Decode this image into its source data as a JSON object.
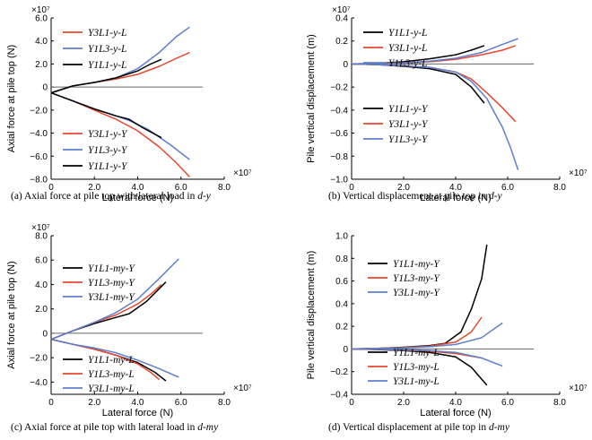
{
  "chart_data": [
    {
      "id": "a",
      "type": "line",
      "caption_text": "(a) Axial force at pile top with lateral load in ",
      "caption_italic": "d-y",
      "xlabel": "Lateral force (N)",
      "ylabel": "Axial force at pile top (N)",
      "x_exponent": "×10⁷",
      "y_exponent": "×10⁷",
      "xlim": [
        0,
        8
      ],
      "ylim": [
        -8,
        6
      ],
      "xticks": [
        0,
        2,
        4,
        6,
        8
      ],
      "xtick_labels": [
        "0",
        "2.0",
        "4.0",
        "6.0",
        "8.0"
      ],
      "yticks": [
        -8,
        -6,
        -4,
        -2,
        0,
        2,
        4,
        6
      ],
      "ytick_labels": [
        "−8.0",
        "−6.0",
        "−4.0",
        "−2.0",
        "0",
        "2.0",
        "4.0",
        "6.0"
      ],
      "zero_line_to": 7,
      "legend_upper": [
        "Y3L1-y-L",
        "Y1L3-y-L",
        "Y1L1-y-L"
      ],
      "legend_lower": [
        "Y3L1-y-Y",
        "Y1L3-y-Y",
        "Y1L1-y-Y"
      ],
      "series": [
        {
          "name": "Y3L1-y-L",
          "color": "#e8462b",
          "points": [
            [
              0,
              -0.5
            ],
            [
              1,
              0.1
            ],
            [
              2,
              0.4
            ],
            [
              3,
              0.7
            ],
            [
              4,
              1.1
            ],
            [
              5,
              1.8
            ],
            [
              5.8,
              2.5
            ],
            [
              6.4,
              3.0
            ]
          ]
        },
        {
          "name": "Y1L3-y-L",
          "color": "#5b7fd0",
          "points": [
            [
              0,
              -0.5
            ],
            [
              1,
              0.1
            ],
            [
              2,
              0.4
            ],
            [
              3,
              0.8
            ],
            [
              4,
              1.6
            ],
            [
              5,
              3.0
            ],
            [
              5.8,
              4.4
            ],
            [
              6.4,
              5.2
            ]
          ]
        },
        {
          "name": "Y1L1-y-L",
          "color": "#000000",
          "points": [
            [
              0,
              -0.5
            ],
            [
              1,
              0.1
            ],
            [
              2,
              0.4
            ],
            [
              3,
              0.8
            ],
            [
              4,
              1.4
            ],
            [
              4.6,
              2.0
            ],
            [
              5.1,
              2.4
            ]
          ]
        },
        {
          "name": "Y3L1-y-Y",
          "color": "#e8462b",
          "points": [
            [
              0,
              -0.5
            ],
            [
              1,
              -1.2
            ],
            [
              2,
              -2.0
            ],
            [
              3,
              -2.8
            ],
            [
              4,
              -3.8
            ],
            [
              5,
              -5.2
            ],
            [
              5.8,
              -6.6
            ],
            [
              6.4,
              -7.8
            ]
          ]
        },
        {
          "name": "Y1L3-y-Y",
          "color": "#5b7fd0",
          "points": [
            [
              0,
              -0.5
            ],
            [
              1,
              -1.2
            ],
            [
              2,
              -1.9
            ],
            [
              3,
              -2.5
            ],
            [
              3.6,
              -2.9
            ],
            [
              4.5,
              -3.7
            ],
            [
              5.5,
              -5.0
            ],
            [
              6.4,
              -6.3
            ]
          ]
        },
        {
          "name": "Y1L1-y-Y",
          "color": "#000000",
          "points": [
            [
              0,
              -0.5
            ],
            [
              1,
              -1.2
            ],
            [
              2,
              -1.9
            ],
            [
              3,
              -2.5
            ],
            [
              3.6,
              -2.8
            ],
            [
              4.3,
              -3.6
            ],
            [
              5.1,
              -4.4
            ]
          ]
        }
      ]
    },
    {
      "id": "b",
      "type": "line",
      "caption_text": "(b) Vertical displacement at pile top in ",
      "caption_italic": "d-y",
      "xlabel": "Lateral force (N)",
      "ylabel": "Pile vertical displacement (m)",
      "x_exponent": "×10⁷",
      "y_exponent": "×10⁷",
      "xlim": [
        0,
        8
      ],
      "ylim": [
        -1.0,
        0.4
      ],
      "xticks": [
        0,
        2,
        4,
        6,
        8
      ],
      "xtick_labels": [
        "0",
        "2.0",
        "4.0",
        "6.0",
        "8.0"
      ],
      "yticks": [
        -1.0,
        -0.8,
        -0.6,
        -0.4,
        -0.2,
        0,
        0.2,
        0.4
      ],
      "ytick_labels": [
        "−1.0",
        "−0.8",
        "−0.6",
        "−0.4",
        "−0.2",
        "0",
        "0.2",
        "0.4"
      ],
      "zero_line_to": 7,
      "legend_upper": [
        "Y1L1-y-L",
        "Y3L1-y-L",
        "Y1L3-y-L"
      ],
      "legend_lower": [
        "Y1L1-y-Y",
        "Y3L1-y-Y",
        "Y1L3-y-Y"
      ],
      "series": [
        {
          "name": "Y1L1-y-L",
          "color": "#000000",
          "points": [
            [
              0,
              0
            ],
            [
              1,
              0.005
            ],
            [
              2,
              0.02
            ],
            [
              3,
              0.045
            ],
            [
              4,
              0.08
            ],
            [
              4.6,
              0.12
            ],
            [
              5.1,
              0.16
            ]
          ]
        },
        {
          "name": "Y3L1-y-L",
          "color": "#e8462b",
          "points": [
            [
              0,
              0
            ],
            [
              1,
              0.004
            ],
            [
              2,
              0.01
            ],
            [
              3,
              0.02
            ],
            [
              4,
              0.04
            ],
            [
              5,
              0.08
            ],
            [
              5.8,
              0.12
            ],
            [
              6.3,
              0.16
            ]
          ]
        },
        {
          "name": "Y1L3-y-L",
          "color": "#5b7fd0",
          "points": [
            [
              0,
              0
            ],
            [
              1,
              0.004
            ],
            [
              2,
              0.01
            ],
            [
              3,
              0.025
            ],
            [
              4,
              0.05
            ],
            [
              5,
              0.1
            ],
            [
              5.8,
              0.17
            ],
            [
              6.4,
              0.22
            ]
          ]
        },
        {
          "name": "Y1L1-y-Y",
          "color": "#000000",
          "points": [
            [
              0,
              0
            ],
            [
              1,
              -0.005
            ],
            [
              2,
              -0.02
            ],
            [
              3,
              -0.04
            ],
            [
              4,
              -0.09
            ],
            [
              4.6,
              -0.2
            ],
            [
              5.1,
              -0.34
            ]
          ]
        },
        {
          "name": "Y3L1-y-Y",
          "color": "#e8462b",
          "points": [
            [
              0,
              0
            ],
            [
              1,
              -0.005
            ],
            [
              2,
              -0.015
            ],
            [
              3,
              -0.03
            ],
            [
              4,
              -0.07
            ],
            [
              4.6,
              -0.13
            ],
            [
              5.2,
              -0.25
            ],
            [
              5.8,
              -0.38
            ],
            [
              6.3,
              -0.5
            ]
          ]
        },
        {
          "name": "Y1L3-y-Y",
          "color": "#5b7fd0",
          "points": [
            [
              0,
              0
            ],
            [
              1,
              -0.005
            ],
            [
              2,
              -0.015
            ],
            [
              3,
              -0.03
            ],
            [
              4,
              -0.07
            ],
            [
              4.6,
              -0.15
            ],
            [
              5.2,
              -0.3
            ],
            [
              5.8,
              -0.55
            ],
            [
              6.1,
              -0.72
            ],
            [
              6.4,
              -0.92
            ]
          ]
        }
      ]
    },
    {
      "id": "c",
      "type": "line",
      "caption_text": "(c) Axial force at pile top with lateral load in ",
      "caption_italic": "d-my",
      "xlabel": "Lateral force (N)",
      "ylabel": "Axial force at pile top (N)",
      "x_exponent": "×10⁷",
      "y_exponent": "×10⁷",
      "xlim": [
        0,
        8
      ],
      "ylim": [
        -5,
        8
      ],
      "xticks": [
        0,
        2,
        4,
        6,
        8
      ],
      "xtick_labels": [
        "0",
        "2.0",
        "4.0",
        "6.0",
        "8.0"
      ],
      "yticks": [
        -4,
        -2,
        0,
        2,
        4,
        6,
        8
      ],
      "ytick_labels": [
        "−4.0",
        "−2.0",
        "0",
        "2.0",
        "4.0",
        "6.0",
        "8.0"
      ],
      "zero_line_to": 7,
      "legend_upper": [
        "Y1L1-my-Y",
        "Y1L3-my-Y",
        "Y3L1-my-Y"
      ],
      "legend_lower": [
        "Y1L1-my-L",
        "Y1L3-my-L",
        "Y3L1-my-L"
      ],
      "series": [
        {
          "name": "Y1L1-my-Y",
          "color": "#000000",
          "points": [
            [
              0,
              -0.5
            ],
            [
              1,
              0.2
            ],
            [
              2,
              0.8
            ],
            [
              3,
              1.3
            ],
            [
              3.6,
              1.6
            ],
            [
              4.4,
              2.6
            ],
            [
              5.3,
              4.2
            ]
          ]
        },
        {
          "name": "Y1L3-my-Y",
          "color": "#e8462b",
          "points": [
            [
              0,
              -0.5
            ],
            [
              1,
              0.2
            ],
            [
              2,
              0.9
            ],
            [
              3,
              1.5
            ],
            [
              4,
              2.4
            ],
            [
              4.6,
              3.2
            ],
            [
              5.1,
              4.0
            ]
          ]
        },
        {
          "name": "Y3L1-my-Y",
          "color": "#5b7fd0",
          "points": [
            [
              0,
              -0.5
            ],
            [
              1,
              0.2
            ],
            [
              2,
              0.9
            ],
            [
              3,
              1.7
            ],
            [
              4,
              2.8
            ],
            [
              5,
              4.5
            ],
            [
              5.9,
              6.1
            ]
          ]
        },
        {
          "name": "Y1L1-my-L",
          "color": "#000000",
          "points": [
            [
              0,
              -0.5
            ],
            [
              1,
              -0.9
            ],
            [
              2,
              -1.3
            ],
            [
              3,
              -1.8
            ],
            [
              4,
              -2.4
            ],
            [
              4.8,
              -3.2
            ],
            [
              5.3,
              -3.9
            ]
          ]
        },
        {
          "name": "Y1L3-my-L",
          "color": "#e8462b",
          "points": [
            [
              0,
              -0.5
            ],
            [
              1,
              -0.9
            ],
            [
              2,
              -1.3
            ],
            [
              3,
              -1.8
            ],
            [
              4,
              -2.5
            ],
            [
              4.6,
              -3.2
            ],
            [
              5.0,
              -3.8
            ]
          ]
        },
        {
          "name": "Y3L1-my-L",
          "color": "#5b7fd0",
          "points": [
            [
              0,
              -0.5
            ],
            [
              1,
              -0.9
            ],
            [
              2,
              -1.2
            ],
            [
              3,
              -1.6
            ],
            [
              4,
              -2.2
            ],
            [
              5,
              -2.9
            ],
            [
              5.9,
              -3.6
            ]
          ]
        }
      ]
    },
    {
      "id": "d",
      "type": "line",
      "caption_text": "(d) Vertical displacement at pile top in ",
      "caption_italic": "d-my",
      "xlabel": "Lateral force (N)",
      "ylabel": "Pile vertical displacement (m)",
      "x_exponent": "×10⁷",
      "y_exponent": "",
      "xlim": [
        0,
        8
      ],
      "ylim": [
        -0.4,
        1.0
      ],
      "xticks": [
        0,
        2,
        4,
        6,
        8
      ],
      "xtick_labels": [
        "0",
        "2.0",
        "4.0",
        "6.0",
        "8.0"
      ],
      "yticks": [
        -0.4,
        -0.2,
        0,
        0.2,
        0.4,
        0.6,
        0.8,
        1.0
      ],
      "ytick_labels": [
        "−0.4",
        "−0.2",
        "0",
        "0.2",
        "0.4",
        "0.6",
        "0.8",
        "1.0"
      ],
      "zero_line_to": 7,
      "legend_upper": [
        "Y1L1-my-Y",
        "Y1L3-my-Y",
        "Y3L1-my-Y"
      ],
      "legend_lower": [
        "Y1L1-my-L",
        "Y1L3-my-L",
        "Y3L1-my-L"
      ],
      "series": [
        {
          "name": "Y1L1-my-Y",
          "color": "#000000",
          "points": [
            [
              0,
              0
            ],
            [
              1,
              0.005
            ],
            [
              2,
              0.015
            ],
            [
              3,
              0.03
            ],
            [
              3.6,
              0.05
            ],
            [
              4.2,
              0.15
            ],
            [
              4.6,
              0.35
            ],
            [
              5.0,
              0.62
            ],
            [
              5.2,
              0.92
            ]
          ]
        },
        {
          "name": "Y1L3-my-Y",
          "color": "#e8462b",
          "points": [
            [
              0,
              0
            ],
            [
              1,
              0.005
            ],
            [
              2,
              0.012
            ],
            [
              3,
              0.025
            ],
            [
              4,
              0.06
            ],
            [
              4.6,
              0.15
            ],
            [
              5.0,
              0.28
            ]
          ]
        },
        {
          "name": "Y3L1-my-Y",
          "color": "#5b7fd0",
          "points": [
            [
              0,
              0
            ],
            [
              1,
              0.004
            ],
            [
              2,
              0.01
            ],
            [
              3,
              0.02
            ],
            [
              4,
              0.04
            ],
            [
              5,
              0.1
            ],
            [
              5.8,
              0.23
            ]
          ]
        },
        {
          "name": "Y1L1-my-L",
          "color": "#000000",
          "points": [
            [
              0,
              0
            ],
            [
              1,
              -0.005
            ],
            [
              2,
              -0.015
            ],
            [
              3,
              -0.03
            ],
            [
              4,
              -0.07
            ],
            [
              4.6,
              -0.16
            ],
            [
              5.2,
              -0.32
            ]
          ]
        },
        {
          "name": "Y1L3-my-L",
          "color": "#e8462b",
          "points": [
            [
              0,
              0
            ],
            [
              1,
              -0.004
            ],
            [
              2,
              -0.01
            ],
            [
              3,
              -0.02
            ],
            [
              4,
              -0.04
            ],
            [
              5,
              -0.08
            ]
          ]
        },
        {
          "name": "Y3L1-my-L",
          "color": "#5b7fd0",
          "points": [
            [
              0,
              0
            ],
            [
              1,
              -0.003
            ],
            [
              2,
              -0.008
            ],
            [
              3,
              -0.015
            ],
            [
              4,
              -0.03
            ],
            [
              5,
              -0.08
            ],
            [
              5.8,
              -0.15
            ]
          ]
        }
      ]
    }
  ]
}
